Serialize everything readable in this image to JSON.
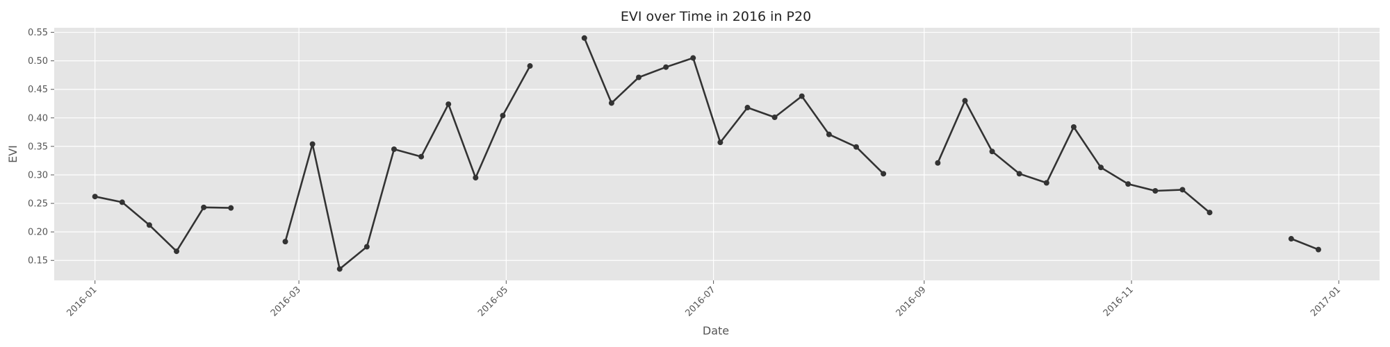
{
  "chart_data": {
    "type": "line",
    "title": "EVI over Time in 2016 in P20",
    "xlabel": "Date",
    "ylabel": "EVI",
    "xlim": [
      "2015-12-20",
      "2017-01-13"
    ],
    "ylim": [
      0.115,
      0.558
    ],
    "grid": true,
    "xticks": [
      "2016-01",
      "2016-03",
      "2016-05",
      "2016-07",
      "2016-09",
      "2016-11",
      "2017-01"
    ],
    "yticks": [
      "0.15",
      "0.20",
      "0.25",
      "0.30",
      "0.35",
      "0.40",
      "0.45",
      "0.50",
      "0.55"
    ],
    "colors": {
      "background": "#e5e5e5",
      "series": "#333333"
    },
    "series": [
      {
        "name": "",
        "points": [
          [
            "2016-01-01",
            0.262
          ],
          [
            "2016-01-09",
            0.252
          ],
          [
            "2016-01-17",
            0.212
          ],
          [
            "2016-01-25",
            0.166
          ],
          [
            "2016-02-02",
            0.243
          ],
          [
            "2016-02-10",
            0.242
          ],
          [
            "2016-02-26",
            null
          ],
          [
            "2016-02-26",
            0.183
          ],
          [
            "2016-03-05",
            0.354
          ],
          [
            "2016-03-13",
            0.135
          ],
          [
            "2016-03-21",
            0.174
          ],
          [
            "2016-03-29",
            0.345
          ],
          [
            "2016-04-06",
            0.332
          ],
          [
            "2016-04-14",
            0.424
          ],
          [
            "2016-04-22",
            0.295
          ],
          [
            "2016-04-30",
            0.404
          ],
          [
            "2016-05-08",
            0.491
          ],
          [
            "2016-05-16",
            null
          ],
          [
            "2016-05-24",
            0.54
          ],
          [
            "2016-06-01",
            0.426
          ],
          [
            "2016-06-09",
            0.471
          ],
          [
            "2016-06-17",
            0.489
          ],
          [
            "2016-06-25",
            0.505
          ],
          [
            "2016-07-03",
            0.357
          ],
          [
            "2016-07-11",
            0.418
          ],
          [
            "2016-07-19",
            0.401
          ],
          [
            "2016-07-27",
            0.438
          ],
          [
            "2016-08-04",
            0.371
          ],
          [
            "2016-08-12",
            0.349
          ],
          [
            "2016-08-20",
            0.302
          ],
          [
            "2016-08-28",
            null
          ],
          [
            "2016-09-05",
            0.321
          ],
          [
            "2016-09-13",
            0.43
          ],
          [
            "2016-09-21",
            0.341
          ],
          [
            "2016-09-29",
            0.302
          ],
          [
            "2016-10-07",
            0.286
          ],
          [
            "2016-10-15",
            0.384
          ],
          [
            "2016-10-23",
            0.313
          ],
          [
            "2016-10-31",
            0.284
          ],
          [
            "2016-11-08",
            0.272
          ],
          [
            "2016-11-16",
            0.274
          ],
          [
            "2016-11-24",
            0.234
          ],
          [
            "2016-12-02",
            null
          ],
          [
            "2016-12-18",
            0.188
          ],
          [
            "2016-12-26",
            0.169
          ]
        ]
      }
    ]
  }
}
